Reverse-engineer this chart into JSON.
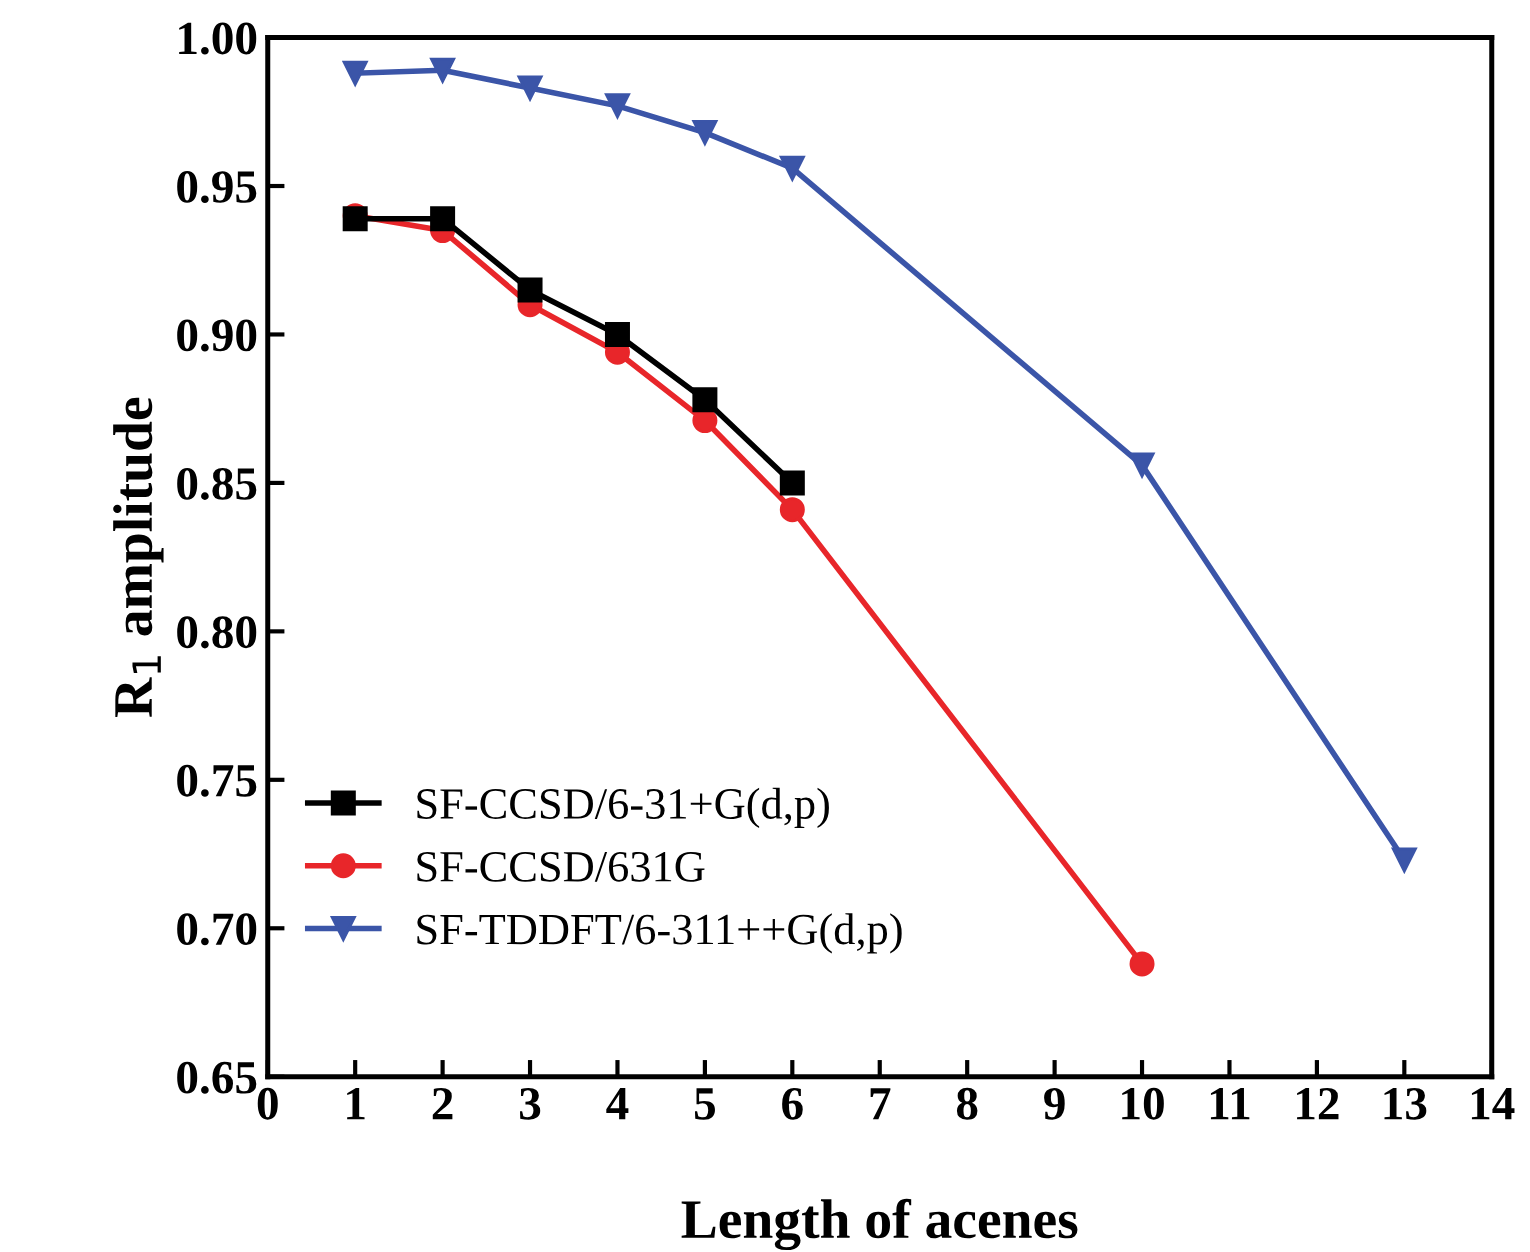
{
  "chart_data": {
    "type": "line",
    "xlabel": "Length of acenes",
    "ylabel": "R$_{1}$ amplitude",
    "xlim": [
      0,
      14
    ],
    "xticks": [
      0,
      1,
      2,
      3,
      4,
      5,
      6,
      7,
      8,
      9,
      10,
      11,
      12,
      13,
      14
    ],
    "ylim": [
      0.65,
      1.0
    ],
    "yticks": [
      {
        "value": 0.65,
        "label": "0.65"
      },
      {
        "value": 0.7,
        "label": "0.70"
      },
      {
        "value": 0.75,
        "label": "0.75"
      },
      {
        "value": 0.8,
        "label": "0.80"
      },
      {
        "value": 0.85,
        "label": "0.85"
      },
      {
        "value": 0.9,
        "label": "0.90"
      },
      {
        "value": 0.95,
        "label": "0.95"
      },
      {
        "value": 1.0,
        "label": "1.00"
      }
    ],
    "grid": false,
    "legend": "bottom left",
    "line_style": "solid",
    "series": [
      {
        "name": "SF-CCSD/6-31+G(d,p)",
        "color": "#000000",
        "marker": "square",
        "x": [
          1,
          2,
          3,
          4,
          5,
          6
        ],
        "values": [
          0.939,
          0.939,
          0.915,
          0.9,
          0.878,
          0.85
        ]
      },
      {
        "name": "SF-CCSD/631G",
        "color": "#e8262a",
        "marker": "circle",
        "x": [
          1,
          2,
          3,
          4,
          5,
          6,
          10
        ],
        "values": [
          0.94,
          0.935,
          0.91,
          0.894,
          0.871,
          0.841,
          0.688
        ]
      },
      {
        "name": "SF-TDDFT/6-311++G(d,p)",
        "color": "#3b55a8",
        "marker": "triangle",
        "x": [
          1,
          2,
          3,
          4,
          5,
          6,
          10,
          13
        ],
        "values": [
          0.988,
          0.989,
          0.983,
          0.977,
          0.968,
          0.956,
          0.856,
          0.723
        ]
      }
    ]
  }
}
